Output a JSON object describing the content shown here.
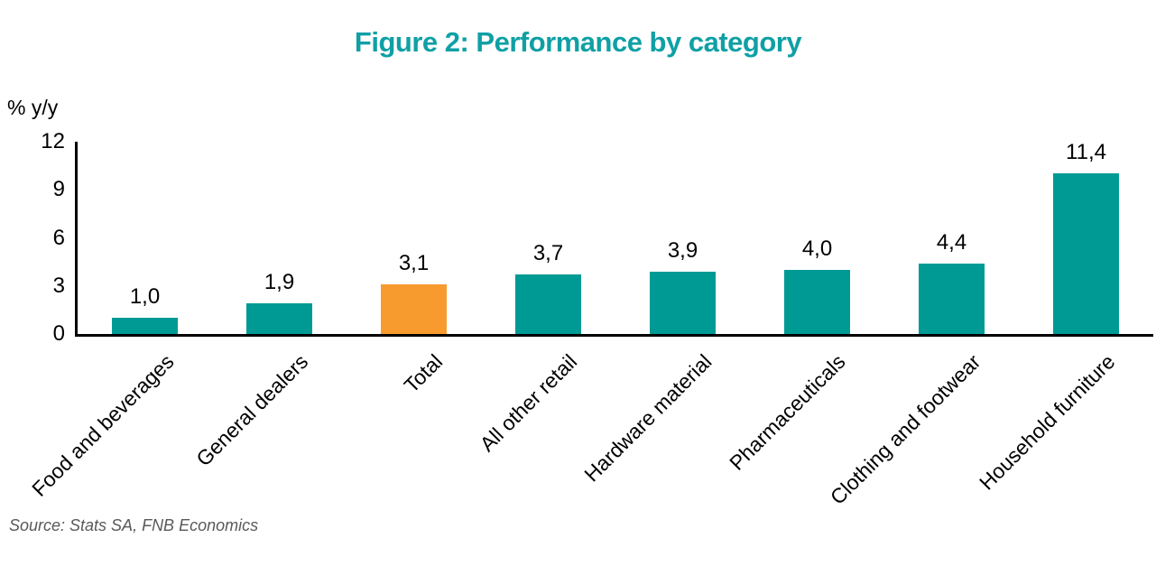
{
  "chart_data": {
    "type": "bar",
    "title": "Figure 2: Performance by category",
    "ylabel": "% y/y",
    "xlabel": "",
    "ylim": [
      0,
      12
    ],
    "yticks": [
      0,
      3,
      6,
      9,
      12
    ],
    "ytick_labels": [
      "0",
      "3",
      "6",
      "9",
      "12"
    ],
    "grid": false,
    "legend": "none",
    "categories": [
      "Food and beverages",
      "General dealers",
      "Total",
      "All other retail",
      "Hardware material",
      "Pharmaceuticals",
      "Clothing and footwear",
      "Household furniture"
    ],
    "values": [
      1.0,
      1.9,
      3.1,
      3.7,
      3.9,
      4.0,
      4.4,
      11.4
    ],
    "value_labels": [
      "1,0",
      "1,9",
      "3,1",
      "3,7",
      "3,9",
      "4,0",
      "4,4",
      "11,4"
    ],
    "highlight_index": 2,
    "source": "Source: Stats SA, FNB Economics",
    "colors": {
      "bar": "#009A94",
      "bar_highlight": "#F79B2E",
      "title": "#0FA0A5",
      "axis": "#000000",
      "text": "#000000",
      "source_text": "#58595B"
    }
  }
}
